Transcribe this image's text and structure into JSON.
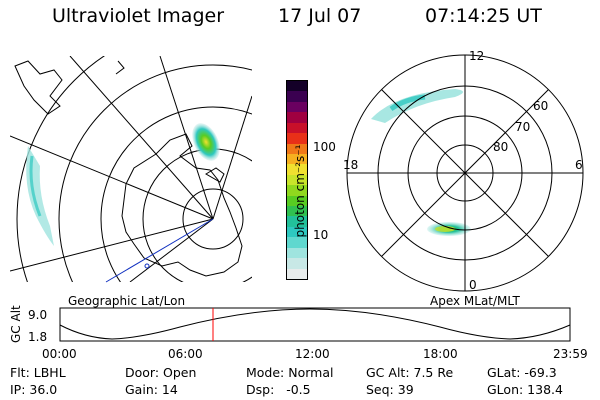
{
  "header": {
    "instrument": "Ultraviolet Imager",
    "date": "17 Jul 07",
    "time": "07:14:25 UT"
  },
  "colorbar": {
    "unit_label": "photon cm⁻²s⁻¹",
    "ticks": [
      "100",
      "10"
    ],
    "colors": [
      "#e8ecec",
      "#c8e8e6",
      "#9fe4df",
      "#5fd8cf",
      "#2ec8c0",
      "#22c09a",
      "#30c050",
      "#58cc22",
      "#90d81e",
      "#c8e42a",
      "#f0e030",
      "#f6b020",
      "#f07818",
      "#e83018",
      "#c8102a",
      "#a00040",
      "#6a0060",
      "#3a0050",
      "#140028"
    ]
  },
  "panels": {
    "left_label": "Geographic Lat/Lon",
    "right_label": "Apex MLat/MLT"
  },
  "polar": {
    "mlt_labels": [
      "12",
      "18",
      "6",
      "0"
    ],
    "lat_labels": [
      "60",
      "70",
      "80"
    ]
  },
  "timeline": {
    "axis_label": "GC Alt",
    "y_ticks": [
      "9.0",
      "1.8"
    ],
    "x_ticks": [
      "00:00",
      "06:00",
      "12:00",
      "18:00",
      "23:59"
    ]
  },
  "status": {
    "row1": [
      "Flt: LBHL",
      "Door: Open",
      "Mode: Normal",
      "GC Alt: 7.5 Re",
      "GLat: -69.3"
    ],
    "row2": [
      "IP: 36.0",
      "Gain: 14",
      "Dsp:   -0.5",
      "Seq: 39",
      "GLon: 138.4"
    ]
  },
  "marker_color": "#ff0000"
}
